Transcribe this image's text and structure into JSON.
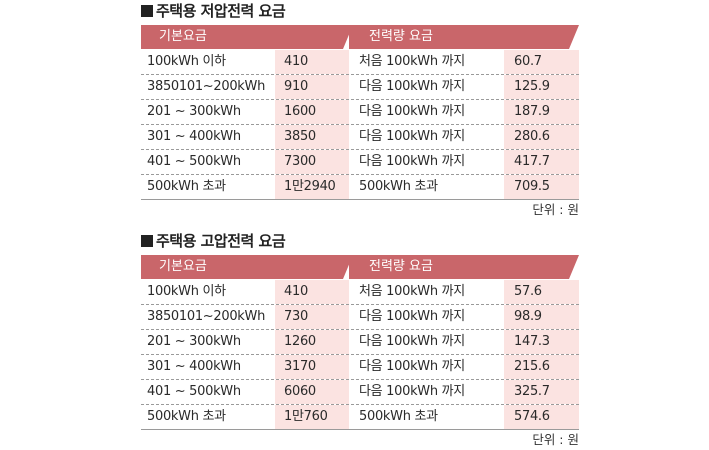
{
  "tables": [
    {
      "title": "주택용 저압전력 요금",
      "header_left": "기본요금",
      "header_right": "전력량 요금",
      "rows": [
        {
          "range": "100kWh 이하",
          "base": "410",
          "usage": "처음 100kWh 까지",
          "rate": "60.7"
        },
        {
          "range": "3850101~200kWh",
          "base": "910",
          "usage": "다음 100kWh 까지",
          "rate": "125.9"
        },
        {
          "range": "201 ~ 300kWh",
          "base": "1600",
          "usage": "다음 100kWh 까지",
          "rate": "187.9"
        },
        {
          "range": "301 ~ 400kWh",
          "base": "3850",
          "usage": "다음 100kWh 까지",
          "rate": "280.6"
        },
        {
          "range": "401 ~ 500kWh",
          "base": "7300",
          "usage": "다음 100kWh 까지",
          "rate": "417.7"
        },
        {
          "range": "500kWh 초과",
          "base": "1만2940",
          "usage": "500kWh 초과",
          "rate": "709.5"
        }
      ],
      "unit": "단위 : 원"
    },
    {
      "title": "주택용 고압전력 요금",
      "header_left": "기본요금",
      "header_right": "전력량 요금",
      "rows": [
        {
          "range": "100kWh 이하",
          "base": "410",
          "usage": "처음 100kWh 까지",
          "rate": "57.6"
        },
        {
          "range": "3850101~200kWh",
          "base": "730",
          "usage": "다음 100kWh 까지",
          "rate": "98.9"
        },
        {
          "range": "201 ~ 300kWh",
          "base": "1260",
          "usage": "다음 100kWh 까지",
          "rate": "147.3"
        },
        {
          "range": "301 ~ 400kWh",
          "base": "3170",
          "usage": "다음 100kWh 까지",
          "rate": "215.6"
        },
        {
          "range": "401 ~ 500kWh",
          "base": "6060",
          "usage": "다음 100kWh 까지",
          "rate": "325.7"
        },
        {
          "range": "500kWh 초과",
          "base": "1만760",
          "usage": "500kWh 초과",
          "rate": "574.6"
        }
      ],
      "unit": "단위 : 원"
    }
  ],
  "colors": {
    "header": "#c9666a",
    "value_cell": "#fbe3e1"
  }
}
